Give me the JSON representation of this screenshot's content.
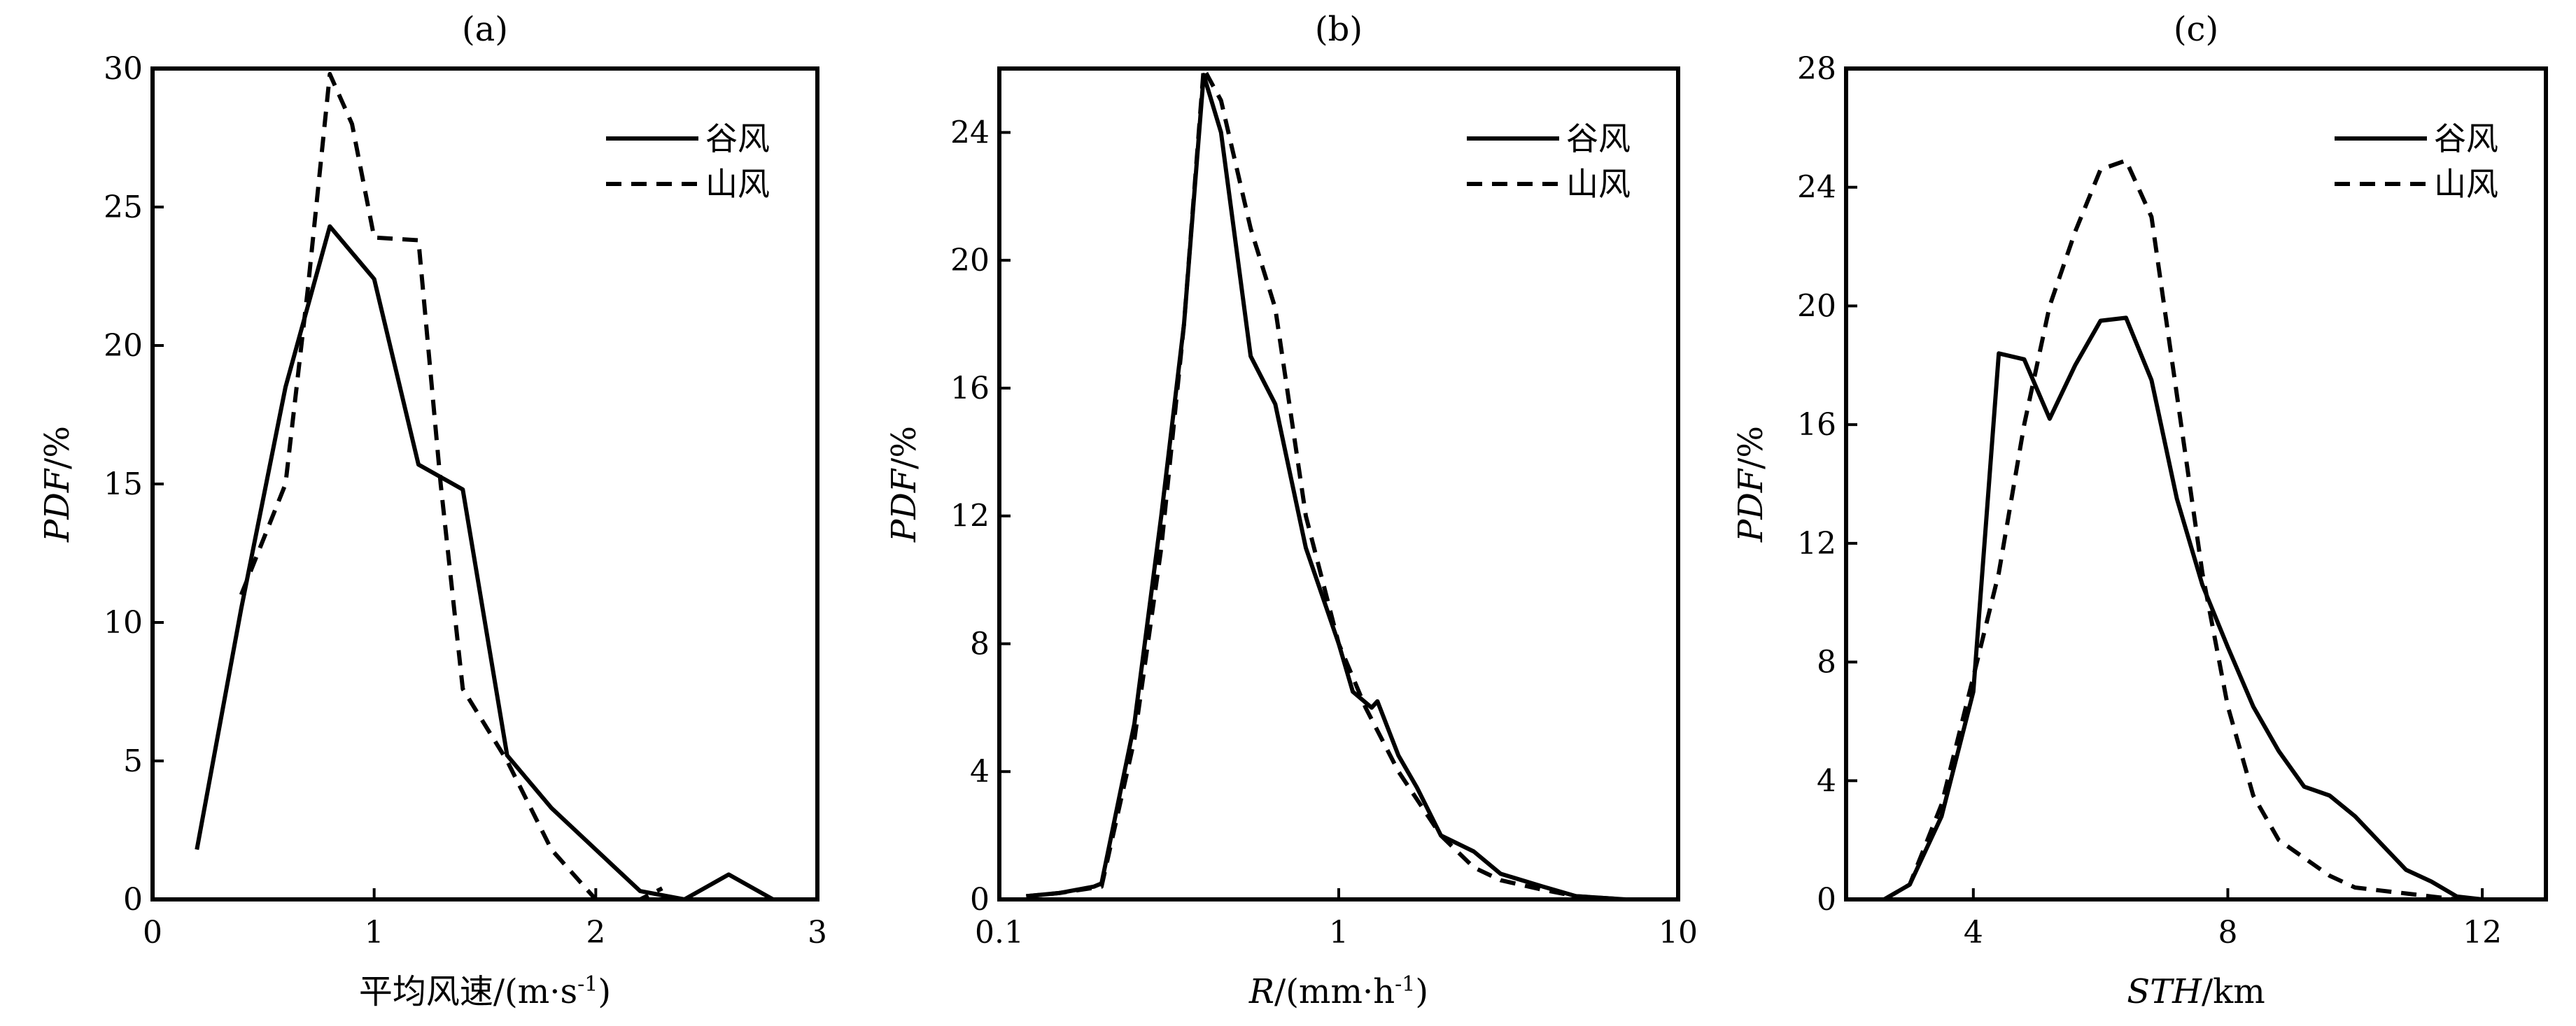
{
  "chart_data": [
    {
      "type": "line",
      "title": "(a)",
      "xlabel": "平均风速/(m·s",
      "xlabel_sup": "-1",
      "xlabel_suffix": ")",
      "xlabel_italic": false,
      "ylabel": "PDF/%",
      "xscale": "linear",
      "xlim": [
        0,
        3
      ],
      "ylim": [
        0,
        30
      ],
      "xticks": [
        0,
        1,
        2,
        3
      ],
      "xtick_labels": [
        "0",
        "1",
        "2",
        "3"
      ],
      "yticks": [
        0,
        5,
        10,
        15,
        20,
        25,
        30
      ],
      "ytick_labels": [
        "0",
        "5",
        "10",
        "15",
        "20",
        "25",
        "30"
      ],
      "legend_position": "top-right",
      "grid": false,
      "series": [
        {
          "name": "谷风",
          "style": "solid",
          "x": [
            0.2,
            0.4,
            0.6,
            0.8,
            1.0,
            1.2,
            1.4,
            1.6,
            1.8,
            2.0,
            2.2,
            2.4,
            2.6,
            2.8
          ],
          "y": [
            1.8,
            10.5,
            18.5,
            24.3,
            22.4,
            15.7,
            14.8,
            5.2,
            3.3,
            1.8,
            0.3,
            0.0,
            0.9,
            0.0
          ]
        },
        {
          "name": "山风",
          "style": "dashed",
          "x": [
            0.4,
            0.6,
            0.7,
            0.8,
            0.9,
            1.0,
            1.2,
            1.3,
            1.4,
            1.6,
            1.8,
            2.0,
            2.2,
            2.3
          ],
          "y": [
            11.0,
            15.0,
            22.0,
            29.8,
            28.0,
            23.9,
            23.8,
            15.0,
            7.6,
            5.0,
            1.8,
            0.0,
            0.0,
            0.4
          ]
        }
      ]
    },
    {
      "type": "line",
      "title": "(b)",
      "xlabel": "R",
      "xlabel_rest": "/(mm·h",
      "xlabel_sup": "-1",
      "xlabel_suffix": ")",
      "xlabel_italic": true,
      "ylabel": "PDF/%",
      "xscale": "log",
      "xlim": [
        0.1,
        10
      ],
      "ylim": [
        0,
        26
      ],
      "xticks": [
        0.1,
        1,
        10
      ],
      "xtick_labels": [
        "0.1",
        "1",
        "10"
      ],
      "yticks": [
        0,
        4,
        8,
        12,
        16,
        20,
        24
      ],
      "ytick_labels": [
        "0",
        "4",
        "8",
        "12",
        "16",
        "20",
        "24"
      ],
      "legend_position": "top-right",
      "grid": false,
      "series": [
        {
          "name": "谷风",
          "style": "solid",
          "x": [
            0.12,
            0.15,
            0.19,
            0.2,
            0.25,
            0.3,
            0.35,
            0.4,
            0.45,
            0.55,
            0.65,
            0.8,
            1.0,
            1.1,
            1.25,
            1.3,
            1.5,
            1.7,
            2.0,
            2.5,
            3.0,
            4.0,
            5.0,
            7.0
          ],
          "y": [
            0.1,
            0.2,
            0.4,
            0.5,
            5.5,
            12.0,
            18.0,
            25.8,
            24.0,
            17.0,
            15.5,
            11.0,
            8.0,
            6.5,
            6.0,
            6.2,
            4.5,
            3.5,
            2.0,
            1.5,
            0.8,
            0.4,
            0.1,
            0.0
          ]
        },
        {
          "name": "山风",
          "style": "dashed",
          "x": [
            0.12,
            0.15,
            0.2,
            0.25,
            0.3,
            0.35,
            0.4,
            0.45,
            0.55,
            0.65,
            0.8,
            1.0,
            1.2,
            1.5,
            2.0,
            2.5,
            3.0,
            4.0,
            5.0,
            7.0
          ],
          "y": [
            0.1,
            0.2,
            0.4,
            5.0,
            11.0,
            18.0,
            26.0,
            25.0,
            21.0,
            18.5,
            12.0,
            8.0,
            6.0,
            4.0,
            2.0,
            1.0,
            0.6,
            0.3,
            0.1,
            0.0
          ]
        }
      ]
    },
    {
      "type": "line",
      "title": "(c)",
      "xlabel": "STH",
      "xlabel_rest": "/km",
      "xlabel_italic": true,
      "ylabel": "PDF/%",
      "xscale": "linear",
      "xlim": [
        2,
        13
      ],
      "ylim": [
        0,
        28
      ],
      "xticks": [
        4,
        8,
        12
      ],
      "xtick_labels": [
        "4",
        "8",
        "12"
      ],
      "yticks": [
        0,
        4,
        8,
        12,
        16,
        20,
        24,
        28
      ],
      "ytick_labels": [
        "0",
        "4",
        "8",
        "12",
        "16",
        "20",
        "24",
        "28"
      ],
      "legend_position": "top-right",
      "grid": false,
      "series": [
        {
          "name": "谷风",
          "style": "solid",
          "x": [
            2.6,
            3.0,
            3.5,
            4.0,
            4.4,
            4.8,
            5.2,
            5.6,
            6.0,
            6.4,
            6.8,
            7.2,
            7.6,
            8.0,
            8.4,
            8.8,
            9.2,
            9.6,
            10.0,
            10.4,
            10.8,
            11.2,
            11.6,
            12.0
          ],
          "y": [
            0.0,
            0.5,
            2.8,
            7.0,
            18.4,
            18.2,
            16.2,
            18.0,
            19.5,
            19.6,
            17.5,
            13.5,
            10.6,
            8.5,
            6.5,
            5.0,
            3.8,
            3.5,
            2.8,
            1.9,
            1.0,
            0.6,
            0.1,
            0.0
          ]
        },
        {
          "name": "山风",
          "style": "dashed",
          "x": [
            2.6,
            3.0,
            3.5,
            4.0,
            4.4,
            4.8,
            5.2,
            5.6,
            6.0,
            6.4,
            6.8,
            7.2,
            7.6,
            8.0,
            8.4,
            8.8,
            9.2,
            9.6,
            10.0,
            10.4,
            10.8,
            11.2,
            11.6
          ],
          "y": [
            0.0,
            0.5,
            3.2,
            7.5,
            11.0,
            16.0,
            20.0,
            22.5,
            24.6,
            24.9,
            23.0,
            17.0,
            11.0,
            6.5,
            3.5,
            2.0,
            1.4,
            0.8,
            0.4,
            0.3,
            0.2,
            0.1,
            0.0
          ]
        }
      ]
    }
  ]
}
